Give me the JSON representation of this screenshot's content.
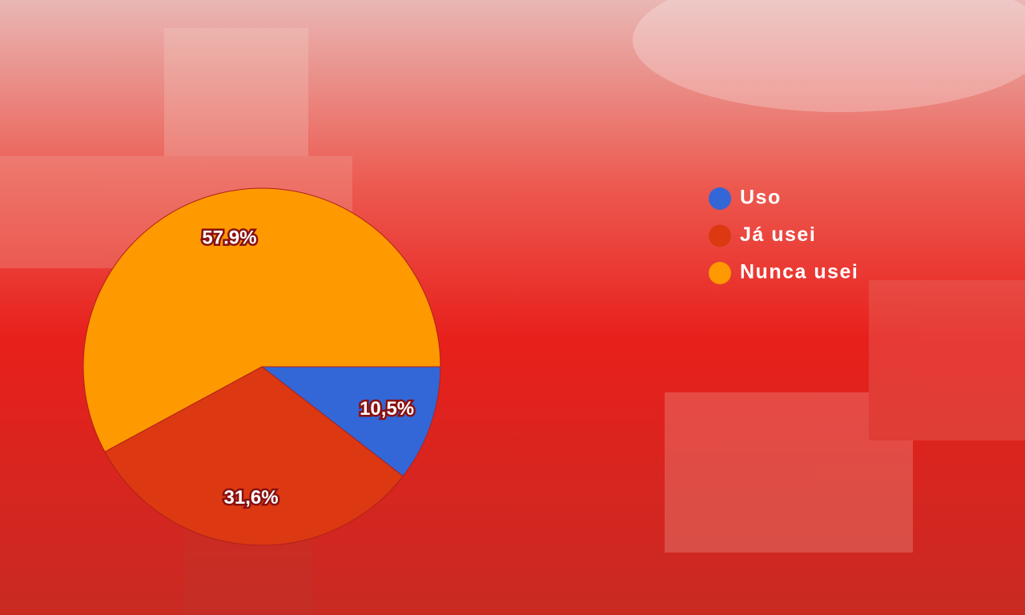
{
  "chart_data": {
    "type": "pie",
    "categories": [
      "Uso",
      "Já usei",
      "Nunca usei"
    ],
    "values": [
      10.5,
      31.6,
      57.9
    ],
    "value_labels": [
      "10,5%",
      "31,6%",
      "57.9%"
    ],
    "colors": [
      "#3366d6",
      "#dc3912",
      "#ff9900"
    ]
  }
}
